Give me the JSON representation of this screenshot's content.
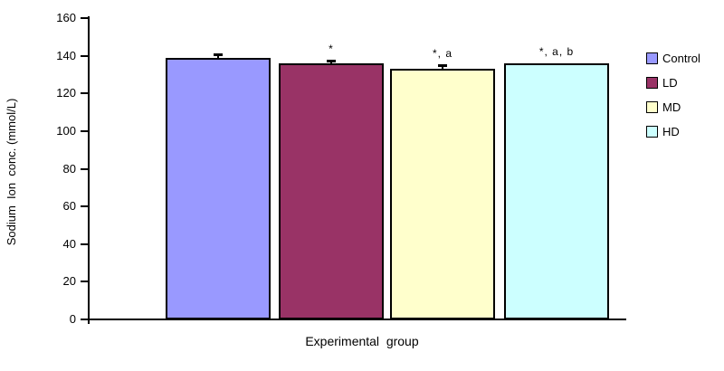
{
  "chart_data": {
    "type": "bar",
    "title": "",
    "xlabel": "Experimental  group",
    "ylabel": "Sodium  Ion  conc. (mmol/L)",
    "categories": [
      "Control",
      "LD",
      "MD",
      "HD"
    ],
    "values": [
      139,
      136,
      133,
      136
    ],
    "errors": [
      2,
      1.5,
      2,
      0
    ],
    "annotations": [
      "",
      "*",
      "*, a",
      "*, a, b"
    ],
    "bar_colors": [
      "#9999FF",
      "#993366",
      "#FFFFCC",
      "#CCFFFF"
    ],
    "bar_border_color": "#000000",
    "ylim": [
      0,
      160
    ],
    "ytick_interval": 20,
    "yticks": [
      0,
      20,
      40,
      60,
      80,
      100,
      120,
      140,
      160
    ],
    "grid": "off",
    "background": "#FFFFFF",
    "legend_position": "right",
    "legend": [
      {
        "label": "Control",
        "color": "#9999FF"
      },
      {
        "label": "LD",
        "color": "#993366"
      },
      {
        "label": "MD",
        "color": "#FFFFCC"
      },
      {
        "label": "HD",
        "color": "#CCFFFF"
      }
    ]
  }
}
